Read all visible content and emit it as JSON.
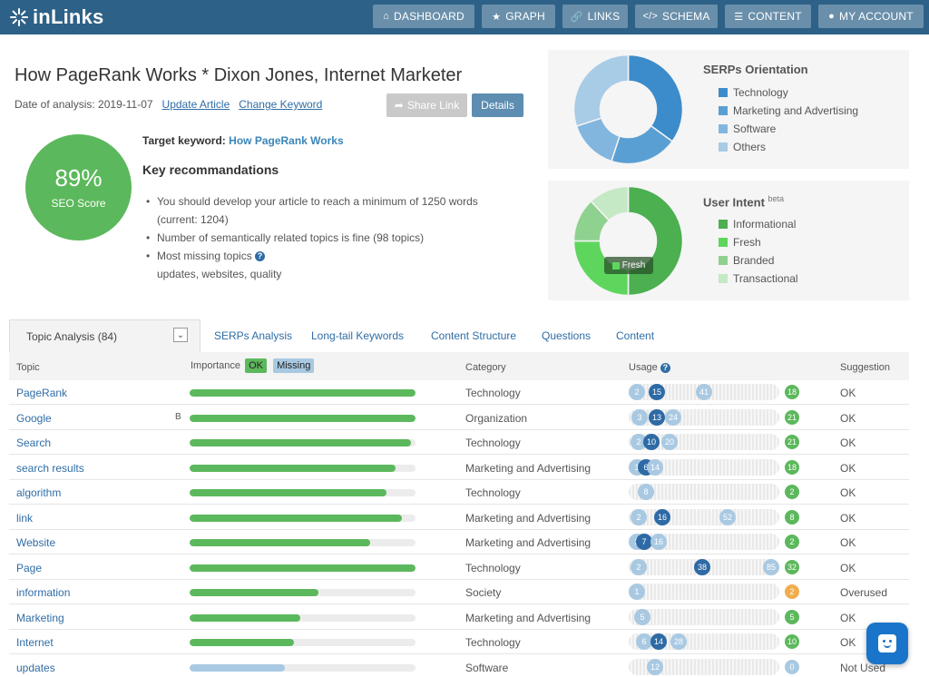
{
  "header": {
    "logo_text": "inLinks",
    "nav": [
      {
        "label": "DASHBOARD",
        "icon": "home-icon"
      },
      {
        "label": "GRAPH",
        "icon": "star-icon"
      },
      {
        "label": "LINKS",
        "icon": "link-icon"
      },
      {
        "label": "SCHEMA",
        "icon": "code-icon"
      },
      {
        "label": "CONTENT",
        "icon": "content-icon"
      },
      {
        "label": "MY ACCOUNT",
        "icon": "user-icon"
      }
    ]
  },
  "article": {
    "title": "How PageRank Works * Dixon Jones, Internet Marketer",
    "date_label": "Date of analysis: 2019-11-07",
    "update_link": "Update Article",
    "change_link": "Change Keyword",
    "share_label": "Share Link",
    "details_label": "Details"
  },
  "score": {
    "value": "89%",
    "label": "SEO Score"
  },
  "target": {
    "label": "Target keyword:",
    "keyword": "How PageRank Works"
  },
  "recommendations": {
    "title": "Key recommandations",
    "line1": "You should develop your article to reach a minimum of 1250 words",
    "line1b": "(current: 1204)",
    "line2": "Number of semantically related topics is fine (98 topics)",
    "line3": "Most missing topics",
    "line3b": "updates, websites, quality"
  },
  "serps_panel": {
    "title": "SERPs Orientation",
    "items": [
      {
        "label": "Technology",
        "color": "#3c8ccb",
        "value": 0.35
      },
      {
        "label": "Marketing and Advertising",
        "color": "#5a9fd4",
        "value": 0.2
      },
      {
        "label": "Software",
        "color": "#82b6df",
        "value": 0.15
      },
      {
        "label": "Others",
        "color": "#a8cbe6",
        "value": 0.3
      }
    ]
  },
  "intent_panel": {
    "title": "User Intent",
    "beta": "beta",
    "tooltip": "Fresh",
    "items": [
      {
        "label": "Informational",
        "color": "#4caf50",
        "value": 0.5
      },
      {
        "label": "Fresh",
        "color": "#5ed65e",
        "value": 0.25
      },
      {
        "label": "Branded",
        "color": "#8fd18f",
        "value": 0.13
      },
      {
        "label": "Transactional",
        "color": "#c5e8c5",
        "value": 0.12
      }
    ]
  },
  "tabs": {
    "active": "Topic Analysis (84)",
    "others": [
      "SERPs Analysis",
      "Long-tail Keywords",
      "Content Structure",
      "Questions",
      "Content"
    ]
  },
  "table": {
    "headers": {
      "topic": "Topic",
      "importance": "Importance",
      "ok": "OK",
      "missing": "Missing",
      "category": "Category",
      "usage": "Usage",
      "suggestion": "Suggestion"
    },
    "rows": [
      {
        "topic": "PageRank",
        "mark": "",
        "importance": 1.0,
        "status": "ok",
        "category": "Technology",
        "u": [
          "2",
          "15",
          "41"
        ],
        "count": "18",
        "count_color": "#5cb85c",
        "suggestion": "OK"
      },
      {
        "topic": "Google",
        "mark": "B",
        "importance": 1.0,
        "status": "ok",
        "category": "Organization",
        "u": [
          "3",
          "13",
          "24"
        ],
        "count": "21",
        "count_color": "#5cb85c",
        "suggestion": "OK"
      },
      {
        "topic": "Search",
        "mark": "",
        "importance": 0.98,
        "status": "ok",
        "category": "Technology",
        "u": [
          "2",
          "10",
          "20"
        ],
        "count": "21",
        "count_color": "#5cb85c",
        "suggestion": "OK"
      },
      {
        "topic": "search results",
        "mark": "",
        "importance": 0.91,
        "status": "ok",
        "category": "Marketing and Advertising",
        "u": [
          "1",
          "6",
          "14"
        ],
        "count": "18",
        "count_color": "#5cb85c",
        "suggestion": "OK"
      },
      {
        "topic": "algorithm",
        "mark": "",
        "importance": 0.87,
        "status": "ok",
        "category": "Technology",
        "u": [
          "",
          "",
          "8"
        ],
        "count": "2",
        "count_color": "#5cb85c",
        "suggestion": "OK"
      },
      {
        "topic": "link",
        "mark": "",
        "importance": 0.94,
        "status": "ok",
        "category": "Marketing and Advertising",
        "u": [
          "2",
          "16",
          "52"
        ],
        "count": "8",
        "count_color": "#5cb85c",
        "suggestion": "OK"
      },
      {
        "topic": "Website",
        "mark": "",
        "importance": 0.8,
        "status": "ok",
        "category": "Marketing and Advertising",
        "u": [
          "2",
          "7",
          "16"
        ],
        "count": "2",
        "count_color": "#5cb85c",
        "suggestion": "OK"
      },
      {
        "topic": "Page",
        "mark": "",
        "importance": 1.0,
        "status": "ok",
        "category": "Technology",
        "u": [
          "2",
          "38",
          "85"
        ],
        "count": "32",
        "count_color": "#5cb85c",
        "suggestion": "OK"
      },
      {
        "topic": "information",
        "mark": "",
        "importance": 0.57,
        "status": "ok",
        "category": "Society",
        "u": [
          "1",
          "",
          ""
        ],
        "count": "2",
        "count_color": "#f0ad4e",
        "suggestion": "Overused"
      },
      {
        "topic": "Marketing",
        "mark": "",
        "importance": 0.49,
        "status": "ok",
        "category": "Marketing and Advertising",
        "u": [
          "",
          "",
          "5"
        ],
        "count": "5",
        "count_color": "#5cb85c",
        "suggestion": "OK"
      },
      {
        "topic": "Internet",
        "mark": "",
        "importance": 0.46,
        "status": "ok",
        "category": "Technology",
        "u": [
          "6",
          "14",
          "28"
        ],
        "count": "10",
        "count_color": "#5cb85c",
        "suggestion": "OK"
      },
      {
        "topic": "updates",
        "mark": "",
        "importance": 0.42,
        "status": "missing",
        "category": "Software",
        "u": [
          "",
          "",
          "12"
        ],
        "count": "0",
        "count_color": "#a9c9e2",
        "suggestion": "Not Used"
      }
    ]
  }
}
